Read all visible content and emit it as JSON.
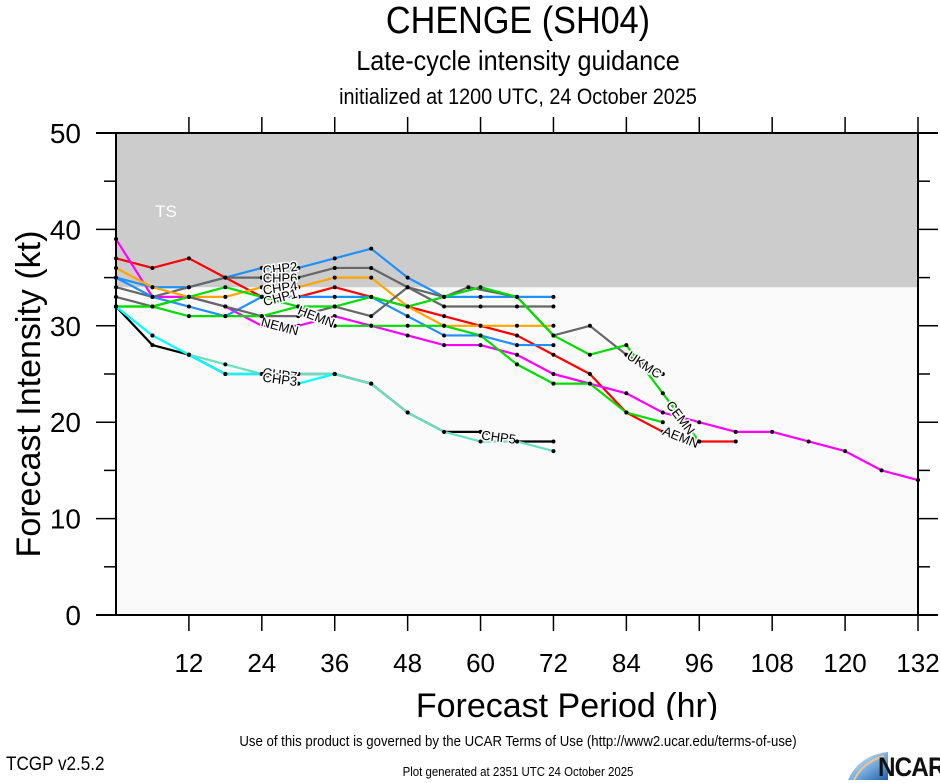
{
  "header": {
    "title": "CHENGE (SH04)",
    "subtitle": "Late-cycle intensity guidance",
    "init_line": "initialized at 1200 UTC, 24 October 2025"
  },
  "footer": {
    "terms": "Use of this product is governed by the UCAR Terms of Use (http://www2.ucar.edu/terms-of-use)",
    "version": "TCGP v2.5.2",
    "generated": "Plot generated at 2351 UTC   24 October 2025",
    "logo_text": "NCAR"
  },
  "chart_data": {
    "type": "line",
    "title": "CHENGE (SH04)",
    "xlabel": "Forecast Period (hr)",
    "ylabel": "Forecast Intensity (kt)",
    "xlim": [
      0,
      132
    ],
    "ylim": [
      0,
      50
    ],
    "xticks": [
      12,
      24,
      36,
      48,
      60,
      72,
      84,
      96,
      108,
      120,
      132
    ],
    "yticks": [
      0,
      10,
      20,
      30,
      40,
      50
    ],
    "bands": [
      {
        "label": "TS",
        "from": 34,
        "to": 50,
        "color": "#cccccc"
      }
    ],
    "background_color": "#fafafa",
    "series": [
      {
        "name": "AEMN",
        "color": "#ff0000",
        "label_at": 90,
        "x": [
          0,
          6,
          12,
          18,
          24,
          30,
          36,
          42,
          48,
          54,
          60,
          66,
          72,
          78,
          84,
          90,
          96,
          102
        ],
        "y": [
          37,
          36,
          37,
          35,
          33,
          33,
          34,
          33,
          32,
          31,
          30,
          29,
          27,
          25,
          21,
          19,
          18,
          18
        ]
      },
      {
        "name": "NEMN",
        "color": "#ff00ff",
        "label_at": 24,
        "x": [
          0,
          6,
          12,
          18,
          24,
          30,
          36,
          42,
          48,
          54,
          60,
          66,
          72,
          78,
          84,
          90,
          96,
          102,
          108,
          114,
          120,
          126,
          132
        ],
        "y": [
          39,
          33,
          33,
          32,
          30,
          30,
          31,
          30,
          29,
          28,
          28,
          27,
          25,
          24,
          23,
          21,
          20,
          19,
          19,
          18,
          17,
          15,
          14
        ]
      },
      {
        "name": "CHP2",
        "color": "#1e90ff",
        "label_at": 24,
        "x": [
          0,
          6,
          12,
          18,
          24,
          30,
          36,
          42,
          48,
          54,
          60,
          66,
          72
        ],
        "y": [
          35,
          34,
          34,
          35,
          36,
          36,
          37,
          38,
          35,
          33,
          33,
          33,
          33
        ]
      },
      {
        "name": "CHP6",
        "color": "#666666",
        "label_at": 24,
        "x": [
          0,
          6,
          12,
          18,
          24,
          30,
          36,
          42,
          48,
          54,
          60,
          66,
          72
        ],
        "y": [
          34,
          33,
          34,
          35,
          35,
          35,
          36,
          36,
          34,
          32,
          32,
          32,
          32
        ]
      },
      {
        "name": "CHP4",
        "color": "#ffa500",
        "label_at": 24,
        "x": [
          0,
          6,
          12,
          18,
          24,
          30,
          36,
          42,
          48,
          54,
          60,
          66,
          72
        ],
        "y": [
          36,
          34,
          33,
          33,
          34,
          34,
          35,
          35,
          32,
          30,
          30,
          30,
          30
        ]
      },
      {
        "name": "CHP1",
        "color": "#1e90ff",
        "label_at": 24,
        "x": [
          0,
          6,
          12,
          18,
          24,
          30,
          36,
          42,
          48,
          54,
          60,
          66,
          72
        ],
        "y": [
          35,
          33,
          32,
          31,
          33,
          33,
          33,
          33,
          31,
          29,
          29,
          28,
          28
        ]
      },
      {
        "name": "UKMC",
        "color": "#666666",
        "label_at": 84,
        "x": [
          0,
          6,
          12,
          18,
          24,
          30,
          36,
          42,
          48,
          54,
          58,
          66,
          72,
          78,
          84,
          90
        ],
        "y": [
          33,
          32,
          33,
          32,
          31,
          31,
          32,
          31,
          34,
          33,
          34,
          33,
          29,
          30,
          27,
          25
        ]
      },
      {
        "name": "CEMN",
        "color": "#00dd00",
        "label_at": 90,
        "x": [
          0,
          6,
          12,
          18,
          24,
          30,
          36,
          42,
          48,
          54,
          60,
          66,
          72,
          78,
          84,
          90,
          96
        ],
        "y": [
          32,
          32,
          31,
          31,
          31,
          32,
          32,
          33,
          32,
          33,
          34,
          33,
          29,
          27,
          28,
          23,
          18
        ]
      },
      {
        "name": "HEMN",
        "color": "#00dd00",
        "label_at": 30,
        "x": [
          0,
          6,
          12,
          18,
          24,
          30,
          36,
          42,
          48,
          54,
          60,
          66,
          72,
          78,
          84,
          90
        ],
        "y": [
          32,
          32,
          33,
          34,
          33,
          32,
          30,
          30,
          30,
          30,
          29,
          26,
          24,
          24,
          21,
          20
        ]
      },
      {
        "name": "CHP5",
        "color": "#000000",
        "label_at": 60,
        "x": [
          0,
          6,
          12,
          18,
          24,
          30,
          36,
          42,
          48,
          54,
          60,
          66,
          72
        ],
        "y": [
          32,
          28,
          27,
          25,
          25,
          25,
          25,
          24,
          21,
          19,
          19,
          18,
          18
        ]
      },
      {
        "name": "CHP7",
        "color": "#66e0c0",
        "label_at": 24,
        "x": [
          0,
          6,
          12,
          18,
          24,
          30,
          36,
          42,
          48,
          54,
          60,
          66,
          72
        ],
        "y": [
          32,
          29,
          27,
          26,
          25,
          25,
          25,
          24,
          21,
          19,
          18,
          18,
          17
        ]
      },
      {
        "name": "CHP3",
        "color": "#00ffff",
        "label_at": 24,
        "x": [
          0,
          6,
          12,
          18,
          24,
          30,
          36
        ],
        "y": [
          32,
          29,
          27,
          25,
          25,
          24,
          25
        ]
      }
    ]
  }
}
